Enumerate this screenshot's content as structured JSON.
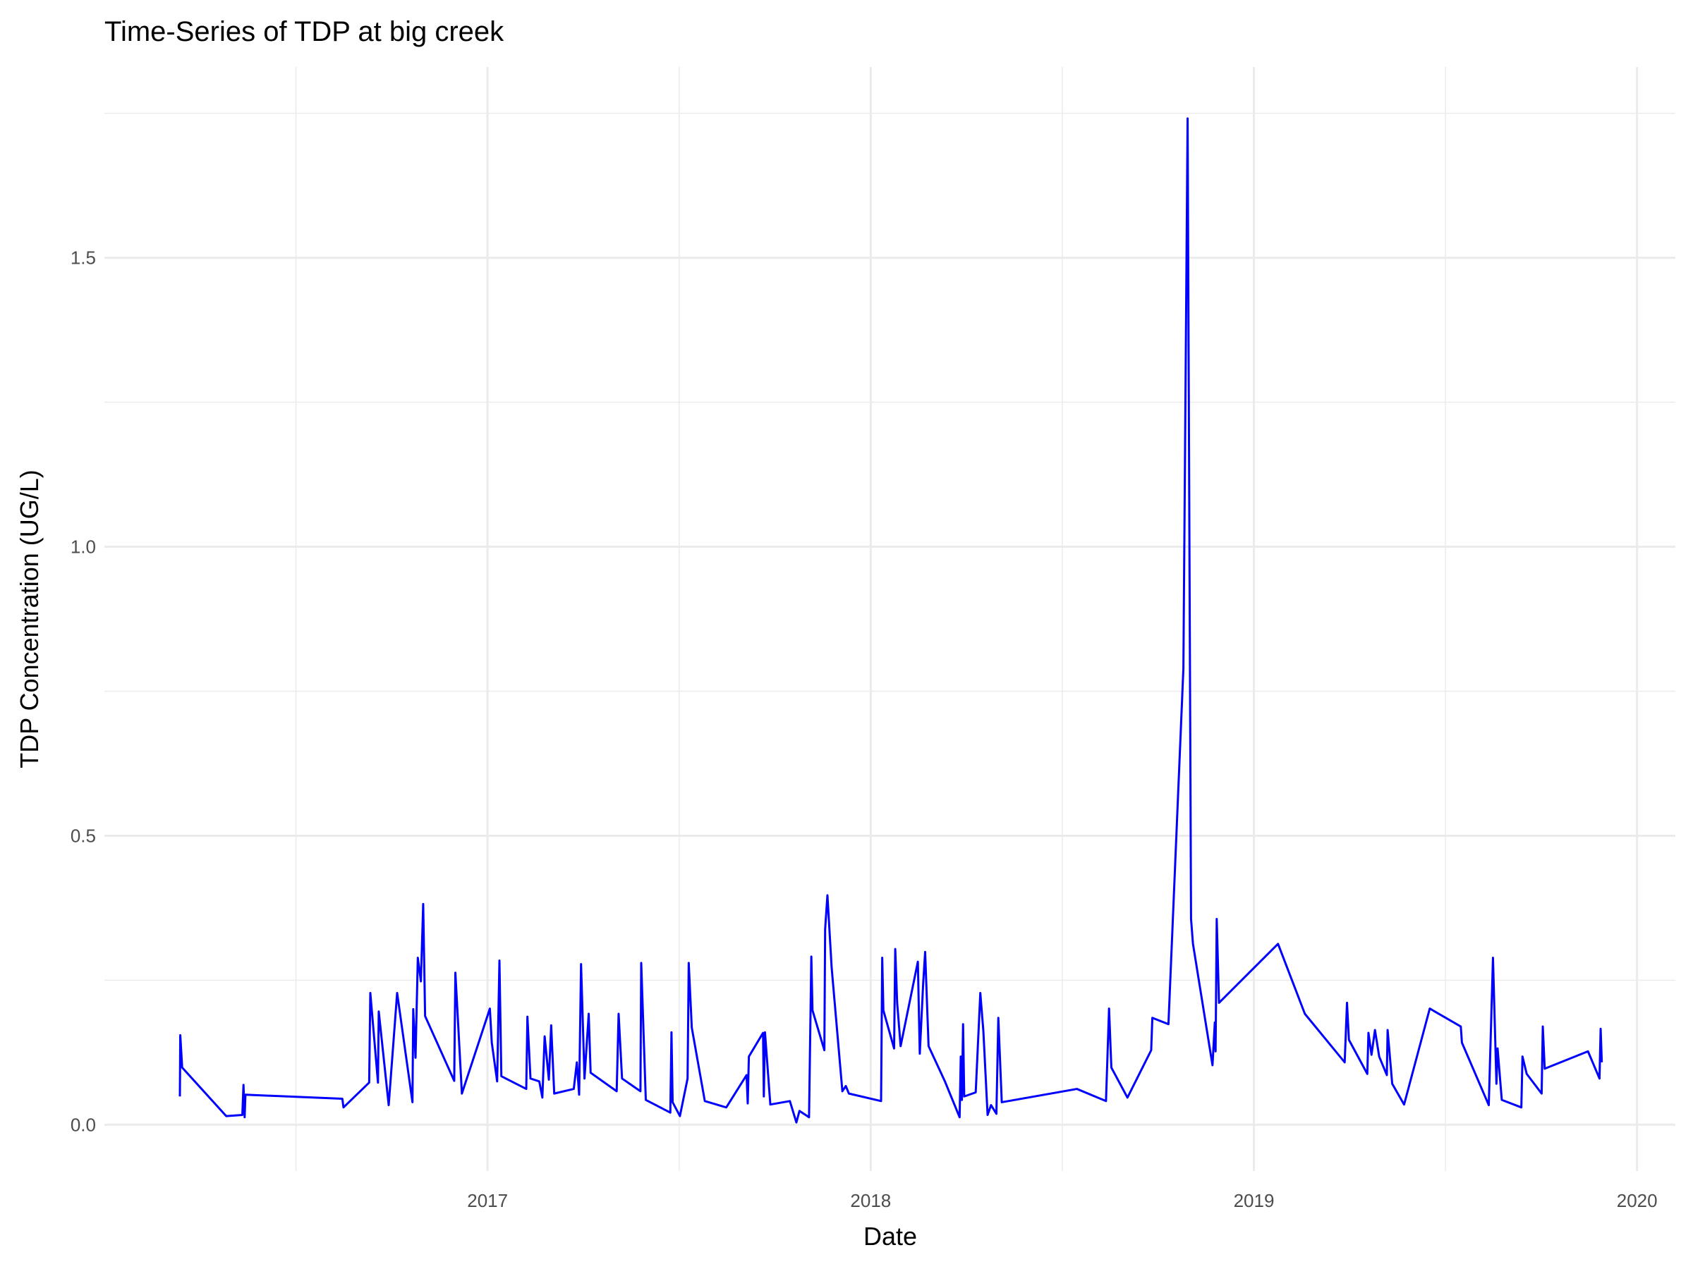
{
  "chart_data": {
    "type": "line",
    "title": "Time-Series of TDP at big creek",
    "x_label": "Date",
    "y_label": "TDP Concentration (UG/L)",
    "color": "#0000ff",
    "grid": true,
    "xlim": [
      2016.0,
      2020.1
    ],
    "xticks": [
      2017,
      2018,
      2019,
      2020
    ],
    "ylim": [
      -0.08,
      1.83
    ],
    "yticks": [
      {
        "value": 0,
        "label": "0.0"
      },
      0.5,
      {
        "value": 1,
        "label": "1.0"
      },
      1.5
    ],
    "x": [
      2016.197,
      2016.198,
      2016.203,
      2016.318,
      2016.36,
      2016.363,
      2016.366,
      2016.368,
      2016.621,
      2016.624,
      2016.691,
      2016.694,
      2016.714,
      2016.716,
      2016.742,
      2016.764,
      2016.804,
      2016.806,
      2016.812,
      2016.818,
      2016.826,
      2016.832,
      2016.837,
      2016.913,
      2016.916,
      2016.933,
      2017.006,
      2017.011,
      2017.025,
      2017.031,
      2017.036,
      2017.101,
      2017.104,
      2017.112,
      2017.135,
      2017.143,
      2017.149,
      2017.16,
      2017.166,
      2017.174,
      2017.225,
      2017.233,
      2017.239,
      2017.244,
      2017.253,
      2017.264,
      2017.269,
      2017.337,
      2017.342,
      2017.351,
      2017.399,
      2017.401,
      2017.413,
      2017.477,
      2017.48,
      2017.483,
      2017.502,
      2017.522,
      2017.525,
      2017.533,
      2017.567,
      2017.623,
      2017.676,
      2017.679,
      2017.682,
      2017.719,
      2017.721,
      2017.724,
      2017.738,
      2017.789,
      2017.806,
      2017.814,
      2017.839,
      2017.845,
      2017.848,
      2017.879,
      2017.881,
      2017.887,
      2017.898,
      2017.926,
      2017.935,
      2017.943,
      2018.027,
      2018.03,
      2018.033,
      2018.061,
      2018.064,
      2018.069,
      2018.078,
      2018.123,
      2018.128,
      2018.137,
      2018.142,
      2018.151,
      2018.193,
      2018.232,
      2018.235,
      2018.238,
      2018.241,
      2018.244,
      2018.274,
      2018.286,
      2018.294,
      2018.305,
      2018.314,
      2018.328,
      2018.333,
      2018.342,
      2018.538,
      2018.614,
      2018.622,
      2018.628,
      2018.67,
      2018.732,
      2018.735,
      2018.777,
      2018.816,
      2018.827,
      2018.836,
      2018.841,
      2018.892,
      2018.898,
      2018.9,
      2018.903,
      2018.909,
      2019.063,
      2019.133,
      2019.237,
      2019.243,
      2019.248,
      2019.296,
      2019.299,
      2019.307,
      2019.316,
      2019.327,
      2019.347,
      2019.349,
      2019.361,
      2019.392,
      2019.459,
      2019.54,
      2019.543,
      2019.613,
      2019.624,
      2019.633,
      2019.636,
      2019.647,
      2019.698,
      2019.701,
      2019.712,
      2019.751,
      2019.754,
      2019.759,
      2019.872,
      2019.902,
      2019.905,
      2019.908
    ],
    "values": [
      0.049,
      0.155,
      0.099,
      0.015,
      0.017,
      0.069,
      0.013,
      0.052,
      0.045,
      0.03,
      0.073,
      0.228,
      0.073,
      0.196,
      0.034,
      0.228,
      0.039,
      0.2,
      0.116,
      0.289,
      0.248,
      0.382,
      0.188,
      0.076,
      0.263,
      0.054,
      0.201,
      0.142,
      0.075,
      0.284,
      0.084,
      0.062,
      0.187,
      0.08,
      0.075,
      0.047,
      0.153,
      0.078,
      0.172,
      0.054,
      0.062,
      0.108,
      0.052,
      0.278,
      0.08,
      0.192,
      0.09,
      0.058,
      0.192,
      0.08,
      0.058,
      0.28,
      0.043,
      0.021,
      0.16,
      0.039,
      0.015,
      0.08,
      0.28,
      0.168,
      0.041,
      0.03,
      0.086,
      0.037,
      0.118,
      0.159,
      0.049,
      0.16,
      0.035,
      0.041,
      0.004,
      0.024,
      0.013,
      0.291,
      0.198,
      0.129,
      0.338,
      0.397,
      0.272,
      0.058,
      0.067,
      0.054,
      0.041,
      0.289,
      0.198,
      0.132,
      0.304,
      0.211,
      0.136,
      0.282,
      0.123,
      0.246,
      0.299,
      0.136,
      0.076,
      0.013,
      0.118,
      0.043,
      0.174,
      0.049,
      0.056,
      0.228,
      0.162,
      0.017,
      0.034,
      0.019,
      0.185,
      0.039,
      0.062,
      0.041,
      0.201,
      0.099,
      0.047,
      0.129,
      0.185,
      0.174,
      0.789,
      1.741,
      0.356,
      0.313,
      0.103,
      0.177,
      0.127,
      0.356,
      0.211,
      0.313,
      0.192,
      0.108,
      0.211,
      0.147,
      0.088,
      0.159,
      0.121,
      0.164,
      0.118,
      0.086,
      0.164,
      0.071,
      0.035,
      0.201,
      0.17,
      0.142,
      0.034,
      0.289,
      0.071,
      0.132,
      0.043,
      0.03,
      0.118,
      0.088,
      0.054,
      0.17,
      0.097,
      0.127,
      0.08,
      0.166,
      0.108
    ]
  }
}
